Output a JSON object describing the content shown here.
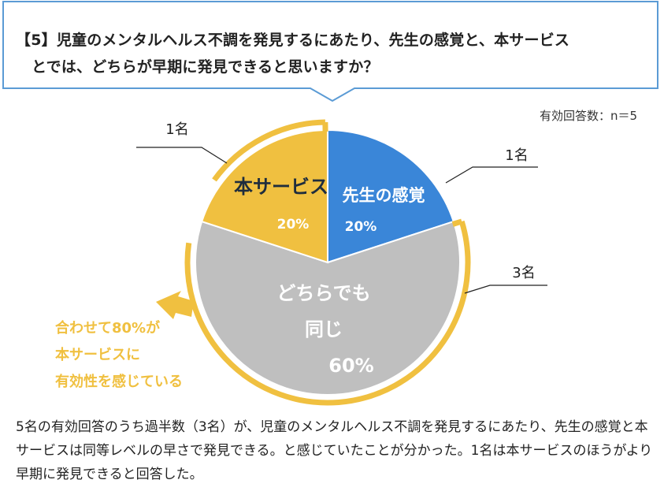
{
  "question": {
    "line1": "【5】児童のメンタルヘルス不調を発見するにあたり、先生の感覚と、本サービス",
    "line2": "とでは、どちらが早期に発見できると思いますか？"
  },
  "n_label": "有効回答数：n＝5",
  "colors": {
    "sensei": "#3a86d8",
    "service": "#f0c040",
    "same": "#bfbfbf",
    "accent_text": "#f0c040",
    "frame_blue": "#5b9bd5"
  },
  "chart_data": {
    "type": "pie",
    "title": "",
    "start_angle_deg": 0,
    "direction": "clockwise",
    "slices": [
      {
        "key": "sensei",
        "label": "先生の感覚",
        "value": 20,
        "pct_label": "20%",
        "count_label": "1名"
      },
      {
        "key": "same",
        "label_line1": "どちらでも",
        "label_line2": "同じ",
        "value": 60,
        "pct_label": "60%",
        "count_label": "3名"
      },
      {
        "key": "service",
        "label": "本サービス",
        "value": 20,
        "pct_label": "20%",
        "count_label": "1名"
      }
    ]
  },
  "callout": {
    "line1": "合わせて80%が",
    "line2": "本サービスに",
    "line3": "有効性を感じている"
  },
  "summary": "5名の有効回答のうち過半数（3名）が、児童のメンタルヘルス不調を発見するにあたり、先生の感覚と本サービスは同等レベルの早さで発見できる。と感じていたことが分かった。1名は本サービスのほうがより早期に発見できると回答した。"
}
